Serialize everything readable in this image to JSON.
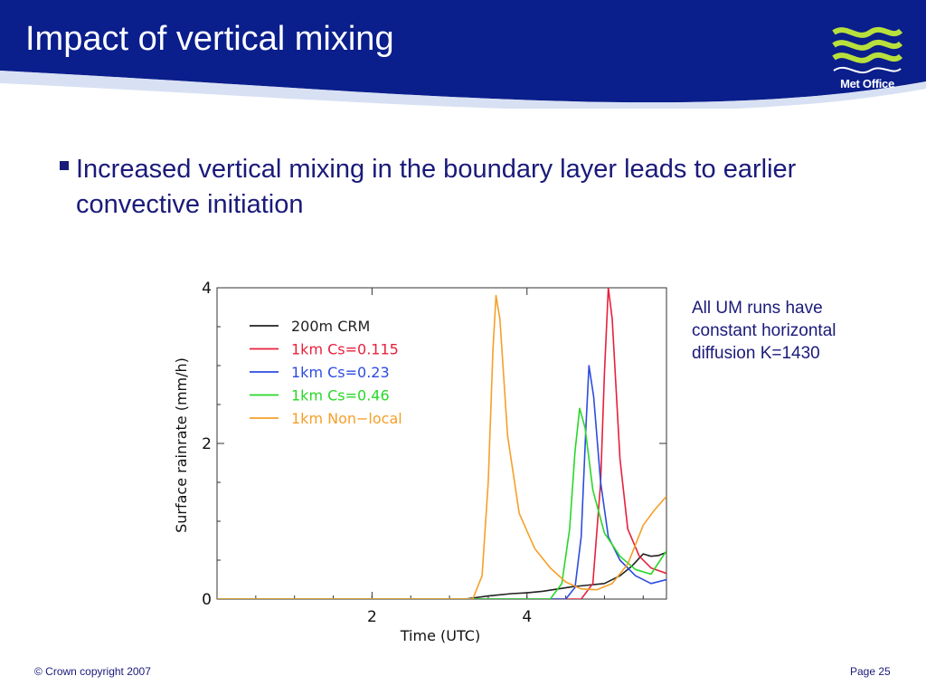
{
  "slide": {
    "title": "Impact of vertical mixing",
    "bullet": "Increased vertical mixing in the boundary layer leads to earlier convective initiation",
    "note": "All UM runs have constant horizontal diffusion K=1430",
    "footer_left": "© Crown copyright 2007",
    "footer_right": "Page 25",
    "logo_text": "Met Office",
    "colors": {
      "header_blue": "#0a1e8c",
      "text_blue": "#1a1a7a",
      "logo_green": "#b8e03c"
    }
  },
  "chart_data": {
    "type": "line",
    "title": "",
    "xlabel": "Time  (UTC)",
    "ylabel": "Surface  rainrate  (mm/h)",
    "xlim": [
      0.0,
      5.8
    ],
    "ylim": [
      0,
      4
    ],
    "xticks": [
      "2",
      "4"
    ],
    "yticks": [
      "0",
      "2",
      "4"
    ],
    "legend_position": "top-left",
    "grid": false,
    "series": [
      {
        "name": "200m  CRM",
        "color": "#222222",
        "x": [
          0.0,
          3.2,
          3.5,
          3.8,
          4.0,
          4.2,
          4.4,
          4.6,
          4.8,
          5.0,
          5.2,
          5.35,
          5.5,
          5.6,
          5.7,
          5.8
        ],
        "y": [
          0.0,
          0.0,
          0.04,
          0.07,
          0.08,
          0.1,
          0.13,
          0.16,
          0.18,
          0.2,
          0.3,
          0.42,
          0.58,
          0.55,
          0.56,
          0.6
        ]
      },
      {
        "name": "1km  Cs=0.115",
        "color": "#e8203c",
        "x": [
          0.0,
          4.7,
          4.85,
          4.95,
          5.0,
          5.05,
          5.1,
          5.2,
          5.3,
          5.45,
          5.6,
          5.8
        ],
        "y": [
          0.0,
          0.0,
          0.2,
          1.5,
          2.9,
          4.0,
          3.6,
          1.8,
          0.9,
          0.55,
          0.4,
          0.33
        ]
      },
      {
        "name": "1km  Cs=0.23",
        "color": "#2c4ce0",
        "x": [
          0.0,
          4.5,
          4.62,
          4.7,
          4.76,
          4.8,
          4.86,
          4.95,
          5.05,
          5.2,
          5.4,
          5.6,
          5.8
        ],
        "y": [
          0.0,
          0.0,
          0.15,
          0.8,
          2.2,
          3.0,
          2.6,
          1.5,
          0.8,
          0.5,
          0.3,
          0.2,
          0.25
        ]
      },
      {
        "name": "1km  Cs=0.46",
        "color": "#28d828",
        "x": [
          0.0,
          4.3,
          4.45,
          4.55,
          4.62,
          4.68,
          4.75,
          4.85,
          5.0,
          5.2,
          5.4,
          5.6,
          5.8
        ],
        "y": [
          0.0,
          0.0,
          0.2,
          0.9,
          1.9,
          2.45,
          2.2,
          1.4,
          0.85,
          0.55,
          0.38,
          0.32,
          0.62
        ]
      },
      {
        "name": "1km  Non−local",
        "color": "#f5a028",
        "x": [
          0.0,
          3.3,
          3.42,
          3.5,
          3.56,
          3.6,
          3.65,
          3.75,
          3.9,
          4.1,
          4.3,
          4.5,
          4.7,
          4.9,
          5.1,
          5.3,
          5.5,
          5.65,
          5.8
        ],
        "y": [
          0.0,
          0.0,
          0.3,
          1.5,
          3.2,
          3.9,
          3.6,
          2.1,
          1.1,
          0.65,
          0.4,
          0.22,
          0.13,
          0.12,
          0.2,
          0.45,
          0.95,
          1.15,
          1.32
        ]
      }
    ]
  }
}
